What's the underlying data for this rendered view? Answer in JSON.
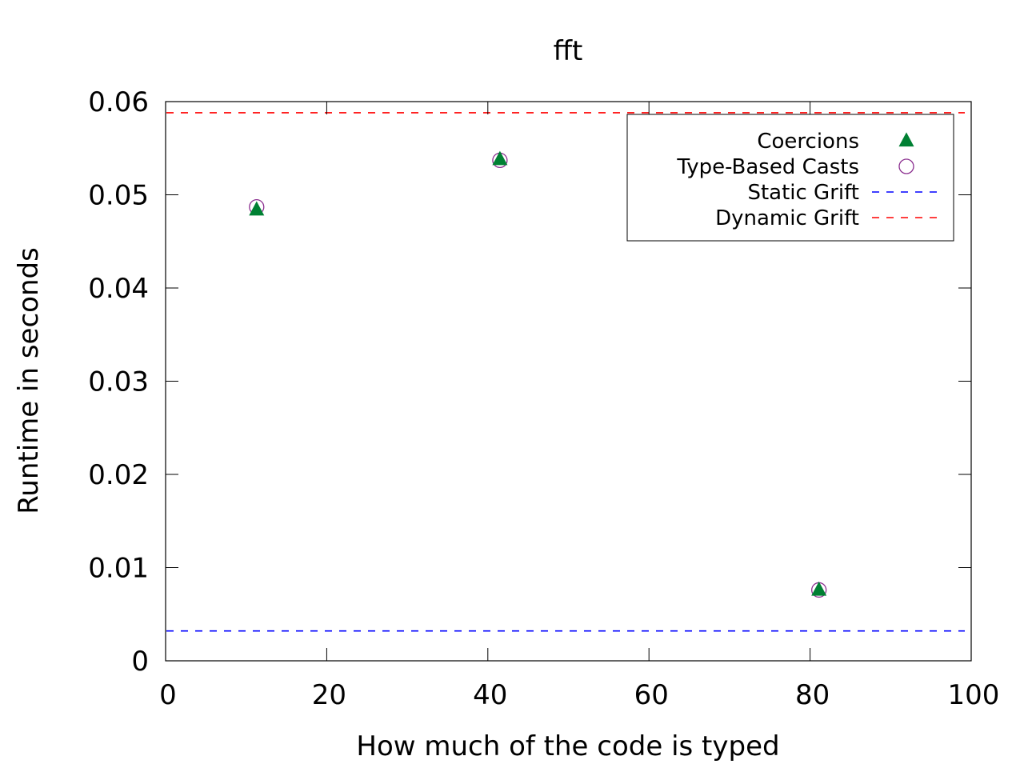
{
  "chart_data": {
    "type": "scatter",
    "title": "fft",
    "xlabel": "How much of the code is typed",
    "ylabel": "Runtime in seconds",
    "xlim": [
      0,
      100
    ],
    "ylim": [
      0,
      0.06
    ],
    "xticks": [
      0,
      20,
      40,
      60,
      80,
      100
    ],
    "yticks": [
      0,
      0.01,
      0.02,
      0.03,
      0.04,
      0.05,
      0.06
    ],
    "xtick_labels": [
      "0",
      "20",
      "40",
      "60",
      "80",
      "100"
    ],
    "ytick_labels": [
      "0",
      "0.01",
      "0.02",
      "0.03",
      "0.04",
      "0.05",
      "0.06"
    ],
    "grid": false,
    "legend_position": "top-right",
    "series": [
      {
        "name": "Coercions",
        "marker": "filled-triangle",
        "color": "#008033",
        "points": [
          {
            "x": 11.3,
            "y": 0.0484
          },
          {
            "x": 41.5,
            "y": 0.0538
          },
          {
            "x": 81.1,
            "y": 0.0076
          }
        ]
      },
      {
        "name": "Type-Based Casts",
        "marker": "open-circle",
        "color": "#8b2f8f",
        "points": [
          {
            "x": 11.3,
            "y": 0.0487
          },
          {
            "x": 41.5,
            "y": 0.0537
          },
          {
            "x": 81.1,
            "y": 0.0076
          }
        ]
      }
    ],
    "reference_lines": [
      {
        "name": "Static Grift",
        "y": 0.0032,
        "style": "dashed",
        "color": "#0000ff"
      },
      {
        "name": "Dynamic Grift",
        "y": 0.0588,
        "style": "dashed",
        "color": "#ff0000"
      }
    ]
  }
}
